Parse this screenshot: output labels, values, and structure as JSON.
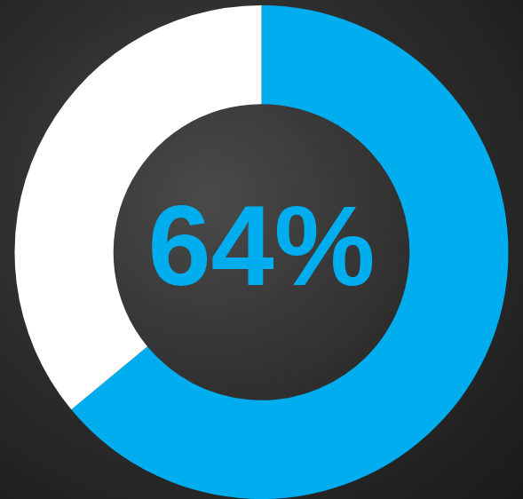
{
  "chart_data": {
    "type": "doughnut",
    "values": [
      64,
      36
    ],
    "colors": [
      "#00aeef",
      "#ffffff"
    ],
    "annotation": "64%"
  }
}
